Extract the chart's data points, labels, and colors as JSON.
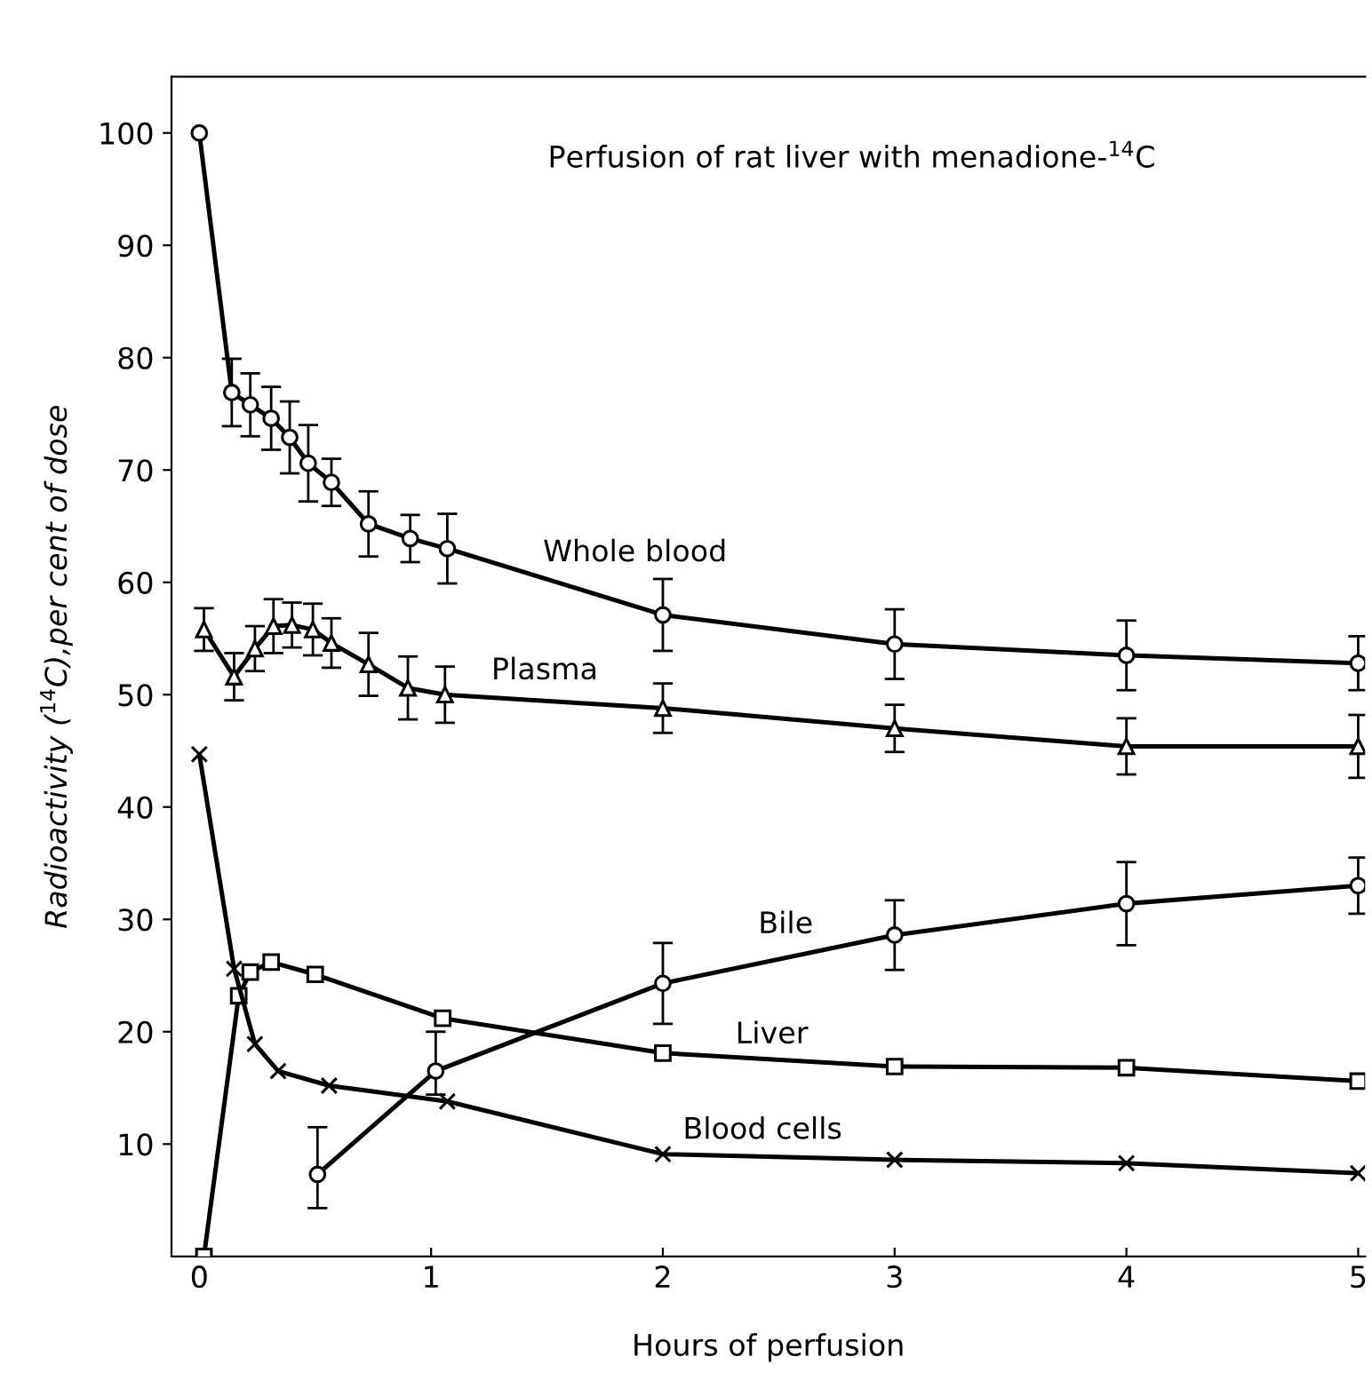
{
  "chart_data": {
    "type": "line",
    "annotations": [
      "Perfusion of rat liver with menadione-$^{14}$C"
    ],
    "xlabel": "Hours of perfusion",
    "ylabel": "Radioactivity ($^{14}$C),per cent of dose",
    "xlim": [
      -0.12,
      5.03
    ],
    "xticks": [
      0,
      1,
      2,
      3,
      4,
      5
    ],
    "ylim": [
      0,
      105
    ],
    "yticks": [
      10,
      20,
      30,
      40,
      50,
      60,
      70,
      80,
      90,
      100
    ],
    "grid": false,
    "legend": false,
    "line_style": "solid",
    "series": [
      {
        "name": "Whole blood",
        "color": "#000000",
        "marker": "circle",
        "x": [
          0,
          0.14,
          0.22,
          0.31,
          0.39,
          0.47,
          0.57,
          0.73,
          0.91,
          1.07,
          2,
          3,
          4,
          5
        ],
        "values": [
          100,
          76.9,
          75.8,
          74.6,
          72.9,
          70.6,
          68.9,
          65.2,
          63.9,
          63.0,
          57.1,
          54.5,
          53.5,
          52.8
        ],
        "errors": [
          null,
          3,
          2.8,
          2.8,
          3.2,
          3.4,
          2.1,
          2.9,
          2.1,
          3.1,
          3.2,
          3.1,
          3.1,
          2.4
        ]
      },
      {
        "name": "Plasma",
        "color": "#000000",
        "marker": "triangle",
        "x": [
          0.02,
          0.15,
          0.24,
          0.32,
          0.4,
          0.49,
          0.57,
          0.73,
          0.9,
          1.06,
          2,
          3,
          4,
          5
        ],
        "values": [
          55.8,
          51.6,
          54.1,
          56.1,
          56.2,
          55.8,
          54.6,
          52.7,
          50.6,
          50.0,
          48.8,
          47.0,
          45.4,
          45.4
        ],
        "errors": [
          1.9,
          2.1,
          2,
          2.4,
          2,
          2.3,
          2.2,
          2.8,
          2.8,
          2.5,
          2.2,
          2.1,
          2.5,
          2.8
        ]
      },
      {
        "name": "Bile",
        "color": "#000000",
        "marker": "circle",
        "x": [
          0.51,
          1.02,
          2,
          3,
          4,
          5
        ],
        "values": [
          7.3,
          16.5,
          24.3,
          28.6,
          31.4,
          33.0
        ],
        "errors": [
          [
            4.3,
            11.5
          ],
          [
            14.4,
            20.0
          ],
          3.6,
          3.1,
          3.7,
          2.5
        ]
      },
      {
        "name": "Liver",
        "color": "#000000",
        "marker": "square",
        "x": [
          0.02,
          0.17,
          0.22,
          0.31,
          0.5,
          1.05,
          2,
          3,
          4,
          5
        ],
        "values": [
          0,
          23.2,
          25.3,
          26.2,
          25.1,
          21.2,
          18.1,
          16.9,
          16.8,
          15.6
        ]
      },
      {
        "name": "Blood cells",
        "color": "#000000",
        "marker": "cross",
        "x": [
          0,
          0.15,
          0.24,
          0.34,
          0.56,
          1.07,
          2,
          3,
          4,
          5
        ],
        "values": [
          44.7,
          25.6,
          18.9,
          16.5,
          15.2,
          13.8,
          9.1,
          8.6,
          8.3,
          7.4
        ]
      }
    ]
  }
}
